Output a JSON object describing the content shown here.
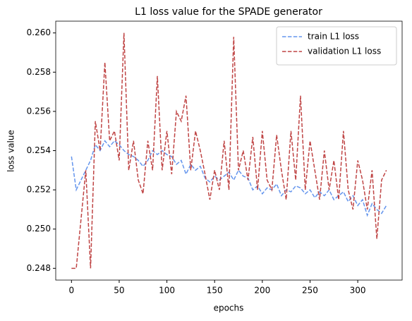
{
  "chart_data": {
    "type": "line",
    "title": "L1 loss value for the SPADE generator",
    "xlabel": "epochs",
    "ylabel": "loss value",
    "x": [
      0,
      5,
      10,
      15,
      20,
      25,
      30,
      35,
      40,
      45,
      50,
      55,
      60,
      65,
      70,
      75,
      80,
      85,
      90,
      95,
      100,
      105,
      110,
      115,
      120,
      125,
      130,
      135,
      140,
      145,
      150,
      155,
      160,
      165,
      170,
      175,
      180,
      185,
      190,
      195,
      200,
      205,
      210,
      215,
      220,
      225,
      230,
      235,
      240,
      245,
      250,
      255,
      260,
      265,
      270,
      275,
      280,
      285,
      290,
      295,
      300,
      305,
      310,
      315,
      320,
      325,
      330
    ],
    "series": [
      {
        "name": "train L1 loss",
        "color": "#6495ed",
        "linestyle": "dashed",
        "values": [
          0.2537,
          0.252,
          0.2525,
          0.253,
          0.2535,
          0.2543,
          0.254,
          0.2545,
          0.2542,
          0.2545,
          0.2543,
          0.254,
          0.2538,
          0.2537,
          0.2535,
          0.2532,
          0.2535,
          0.254,
          0.2538,
          0.254,
          0.2538,
          0.2537,
          0.2533,
          0.2535,
          0.2528,
          0.2533,
          0.253,
          0.2532,
          0.2526,
          0.2524,
          0.2527,
          0.2525,
          0.2527,
          0.2529,
          0.2525,
          0.253,
          0.2527,
          0.2526,
          0.252,
          0.2522,
          0.2518,
          0.2521,
          0.252,
          0.2523,
          0.2517,
          0.252,
          0.2519,
          0.2522,
          0.2521,
          0.2518,
          0.252,
          0.2516,
          0.2519,
          0.2517,
          0.252,
          0.2515,
          0.2517,
          0.2519,
          0.2514,
          0.2517,
          0.2512,
          0.2515,
          0.2507,
          0.2513,
          0.251,
          0.2508,
          0.2512
        ]
      },
      {
        "name": "validation L1 loss",
        "color": "#bf4444",
        "linestyle": "dashed",
        "values": [
          0.248,
          0.248,
          0.2505,
          0.253,
          0.248,
          0.2555,
          0.254,
          0.2585,
          0.2545,
          0.255,
          0.2535,
          0.26,
          0.253,
          0.2545,
          0.2525,
          0.2518,
          0.2545,
          0.253,
          0.2578,
          0.253,
          0.255,
          0.2528,
          0.256,
          0.2555,
          0.2568,
          0.253,
          0.255,
          0.254,
          0.2528,
          0.2515,
          0.253,
          0.252,
          0.2545,
          0.252,
          0.2598,
          0.253,
          0.254,
          0.2525,
          0.2547,
          0.252,
          0.255,
          0.2525,
          0.252,
          0.2548,
          0.253,
          0.2515,
          0.255,
          0.2525,
          0.2568,
          0.252,
          0.2545,
          0.253,
          0.2515,
          0.254,
          0.252,
          0.2535,
          0.2515,
          0.255,
          0.252,
          0.251,
          0.2535,
          0.2525,
          0.251,
          0.253,
          0.2495,
          0.2525,
          0.253
        ]
      }
    ],
    "xlim": [
      -16.5,
      346.5
    ],
    "ylim": [
      0.2474,
      0.2606
    ],
    "xticks": [
      0,
      50,
      100,
      150,
      200,
      250,
      300
    ],
    "yticks": [
      0.248,
      {
        "value": 0.25,
        "label": "0.250"
      },
      0.252,
      0.254,
      0.256,
      0.258,
      {
        "value": 0.26,
        "label": "0.260"
      }
    ],
    "grid": false,
    "legend": "upper right"
  }
}
